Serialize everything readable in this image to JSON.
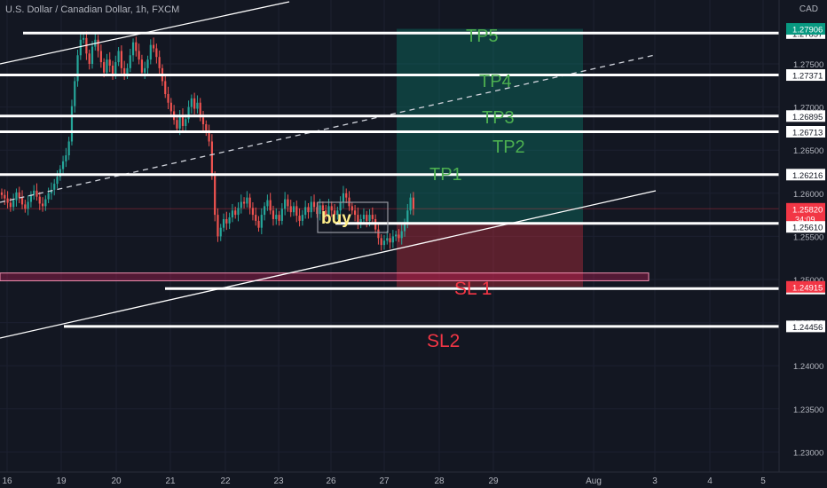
{
  "header": {
    "title": "U.S. Dollar / Canadian Dollar, 1h, FXCM",
    "currency": "CAD"
  },
  "chart_data": {
    "type": "candlestick",
    "symbol": "U.S. Dollar / Canadian Dollar",
    "interval": "1h",
    "source": "FXCM",
    "ylim": [
      1.2275,
      1.2805
    ],
    "x_ticks": [
      "16",
      "19",
      "20",
      "21",
      "22",
      "23",
      "26",
      "27",
      "28",
      "29",
      "Aug",
      "3",
      "4",
      "5"
    ],
    "y_ticks": [
      "1.27500",
      "1.27000",
      "1.26500",
      "1.26000",
      "1.25500",
      "1.25000",
      "1.24500",
      "1.24000",
      "1.23500",
      "1.23000"
    ],
    "horizontal_levels": [
      {
        "label": "1.27857",
        "value": 1.27857
      },
      {
        "label": "1.27371",
        "value": 1.27371
      },
      {
        "label": "1.26895",
        "value": 1.26895
      },
      {
        "label": "1.26713",
        "value": 1.26713
      },
      {
        "label": "1.26216",
        "value": 1.26216
      },
      {
        "label": "1.25651",
        "value": 1.25651
      },
      {
        "label": "1.24895",
        "value": 1.24895
      },
      {
        "label": "1.24456",
        "value": 1.24456
      }
    ],
    "price_badges": [
      {
        "label": "1.27906",
        "value": 1.27906,
        "color": "#089981"
      },
      {
        "label": "1.25820",
        "value": 1.2582,
        "sub": "34:09",
        "color": "#f23645"
      },
      {
        "label": "1.25610",
        "value": 1.2561,
        "color": "#ffffff"
      },
      {
        "label": "1.24915",
        "value": 1.24915,
        "color": "#f23645"
      }
    ],
    "targets": [
      {
        "label": "TP5",
        "color": "#4caf50"
      },
      {
        "label": "TP4",
        "color": "#4caf50"
      },
      {
        "label": "TP3",
        "color": "#4caf50"
      },
      {
        "label": "TP2",
        "color": "#4caf50"
      },
      {
        "label": "TP1",
        "color": "#4caf50"
      }
    ],
    "stops": [
      {
        "label": "SL 1",
        "color": "#f23645"
      },
      {
        "label": "SL2",
        "color": "#f23645"
      }
    ],
    "entry_label": "buy",
    "position": {
      "entry": 1.25651,
      "target": 1.27906,
      "stop": 1.24915
    },
    "support_zone": [
      1.25075,
      1.24985
    ],
    "closes": [
      1.2598,
      1.2594,
      1.2589,
      1.2584,
      1.2592,
      1.2601,
      1.2595,
      1.2587,
      1.2582,
      1.259,
      1.2598,
      1.2603,
      1.2596,
      1.2588,
      1.2585,
      1.2593,
      1.26,
      1.2604,
      1.2611,
      1.2619,
      1.2628,
      1.2637,
      1.2644,
      1.266,
      1.2701,
      1.273,
      1.276,
      1.2778,
      1.278,
      1.2762,
      1.275,
      1.277,
      1.2778,
      1.2765,
      1.2752,
      1.274,
      1.2755,
      1.2748,
      1.2738,
      1.2752,
      1.2765,
      1.2745,
      1.2738,
      1.2745,
      1.276,
      1.2775,
      1.2765,
      1.2755,
      1.274,
      1.2745,
      1.2755,
      1.2772,
      1.2768,
      1.2758,
      1.2745,
      1.273,
      1.2715,
      1.2705,
      1.2695,
      1.2685,
      1.2675,
      1.269,
      1.2678,
      1.2686,
      1.27,
      1.271,
      1.2698,
      1.2705,
      1.2688,
      1.268,
      1.2673,
      1.266,
      1.262,
      1.2575,
      1.255,
      1.256,
      1.257,
      1.2565,
      1.2572,
      1.258,
      1.2575,
      1.2583,
      1.259,
      1.2588,
      1.2595,
      1.2583,
      1.2575,
      1.2568,
      1.256,
      1.2575,
      1.2585,
      1.2592,
      1.258,
      1.257,
      1.2575,
      1.2568,
      1.2582,
      1.2593,
      1.2585,
      1.2578,
      1.2585,
      1.2574,
      1.2568,
      1.2575,
      1.2584,
      1.2578,
      1.259,
      1.2584,
      1.2576,
      1.2586,
      1.258,
      1.2575,
      1.2585,
      1.258,
      1.2575,
      1.258,
      1.259,
      1.26,
      1.2595,
      1.2585,
      1.258,
      1.2575,
      1.2565,
      1.257,
      1.2575,
      1.2568,
      1.2575,
      1.257,
      1.2558,
      1.2548,
      1.254,
      1.2545,
      1.2548,
      1.2543,
      1.255,
      1.2552,
      1.2548,
      1.2556,
      1.2565,
      1.258,
      1.2595,
      1.2582
    ]
  }
}
